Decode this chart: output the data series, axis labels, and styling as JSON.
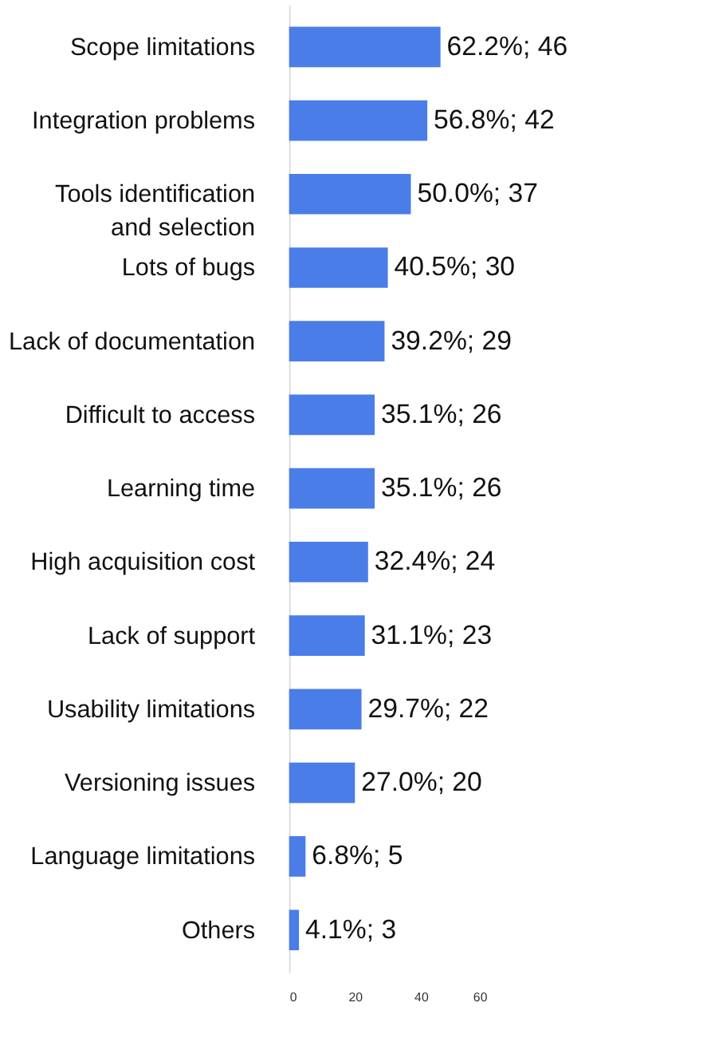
{
  "chart_data": {
    "type": "bar",
    "orientation": "horizontal",
    "categories": [
      "Scope limitations",
      "Integration problems",
      "Tools identification\nand selection",
      "Lots of bugs",
      "Lack of documentation",
      "Difficult to access",
      "Learning time",
      "High acquisition cost",
      "Lack of support",
      "Usability limitations",
      "Versioning issues",
      "Language limitations",
      "Others"
    ],
    "values": [
      46,
      42,
      37,
      30,
      29,
      26,
      26,
      24,
      23,
      22,
      20,
      5,
      3
    ],
    "value_labels": [
      "62.2%; 46",
      "56.8%; 42",
      "50.0%; 37",
      "40.5%; 30",
      "39.2%; 29",
      "35.1%; 26",
      "35.1%; 26",
      "32.4%; 24",
      "31.1%; 23",
      "29.7%; 22",
      "27.0%; 20",
      "6.8%; 5",
      "4.1%; 3"
    ],
    "color": "#4a7de8",
    "xlim": [
      0,
      60
    ],
    "xticks": [
      0,
      20,
      40,
      60
    ],
    "grid": false
  }
}
